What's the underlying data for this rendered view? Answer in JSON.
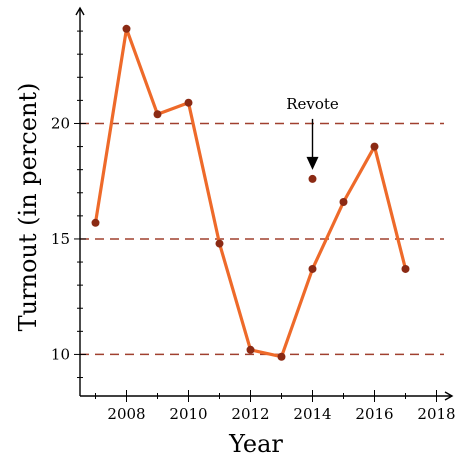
{
  "chart_data": {
    "type": "line",
    "xlabel": "Year",
    "ylabel": "Turnout (in percent)",
    "xlim": [
      2006.5,
      2018.5
    ],
    "ylim": [
      8.2,
      25
    ],
    "x_ticks": [
      2008,
      2010,
      2012,
      2014,
      2016,
      2018
    ],
    "y_ticks": [
      10,
      15,
      20
    ],
    "x_minor_ticks": [
      2007,
      2009,
      2011,
      2013,
      2015,
      2017
    ],
    "y_minor_ticks": [
      9,
      11,
      12,
      13,
      14,
      16,
      17,
      18,
      19,
      21,
      22,
      23,
      24
    ],
    "reference_lines": [
      10,
      15,
      20
    ],
    "series": [
      {
        "color": "#ee6a2a",
        "x": [
          2007,
          2008,
          2009,
          2010,
          2011,
          2012,
          2013,
          2014,
          2015,
          2016,
          2017
        ],
        "y": [
          15.7,
          24.1,
          20.4,
          20.9,
          14.8,
          10.2,
          9.9,
          13.7,
          16.6,
          19.0,
          13.7
        ]
      }
    ],
    "extra_points": [
      {
        "x": 2014,
        "y": 17.6
      }
    ],
    "annotations": [
      {
        "text": "Revote",
        "x": 2014,
        "y": 17.6
      }
    ],
    "grid": false,
    "colors": {
      "line": "#ee6a2a",
      "marker": "#8b2a14",
      "reference": "#a0402f"
    }
  }
}
